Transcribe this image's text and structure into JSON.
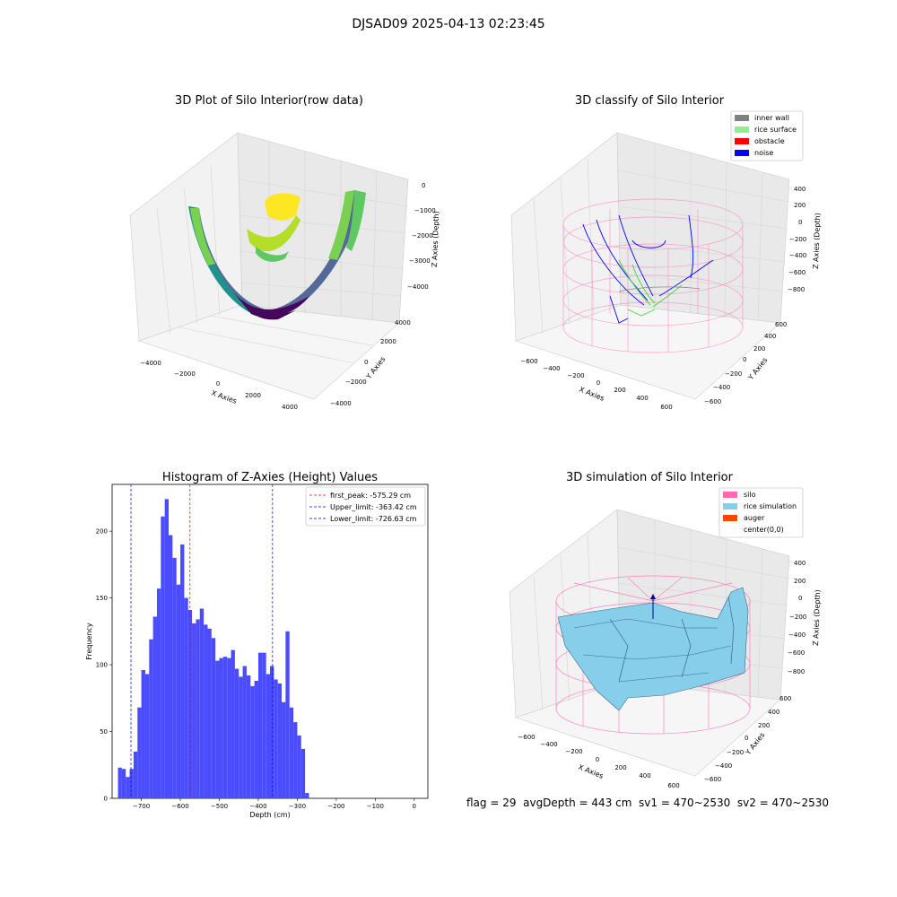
{
  "suptitle": "DJSAD09 2025-04-13 02:23:45",
  "panels": {
    "raw": {
      "title": "3D Plot of Silo Interior(row data)",
      "xlabel": "X Axies",
      "ylabel": "Y Axies",
      "zlabel": "Z Axies (Depth)",
      "xticks": [
        "−4000",
        "−2000",
        "0",
        "2000",
        "4000"
      ],
      "yticks": [
        "−4000",
        "−2000",
        "0",
        "2000",
        "4000"
      ],
      "zticks": [
        "0",
        "−1000",
        "−2000",
        "−3000",
        "−4000"
      ]
    },
    "classify": {
      "title": "3D classify of Silo Interior",
      "xlabel": "X Axies",
      "ylabel": "Y Axies",
      "zlabel": "Z Axies (Depth)",
      "xticks": [
        "−600",
        "−400",
        "−200",
        "0",
        "200",
        "400",
        "600"
      ],
      "yticks": [
        "−600",
        "−400",
        "−200",
        "0",
        "200",
        "400",
        "600"
      ],
      "zticks": [
        "400",
        "200",
        "0",
        "−200",
        "−400",
        "−600",
        "−800"
      ],
      "legend": [
        {
          "label": "inner wall",
          "color": "#808080"
        },
        {
          "label": "rice surface",
          "color": "#90ee90"
        },
        {
          "label": "obstacle",
          "color": "#ff0000"
        },
        {
          "label": "noise",
          "color": "#0000ff"
        }
      ]
    },
    "simulation": {
      "title": "3D simulation of Silo Interior",
      "xlabel": "X Axies",
      "ylabel": "Y Axies",
      "zlabel": "Z Axies (Depth)",
      "xticks": [
        "−600",
        "−400",
        "−200",
        "0",
        "200",
        "400",
        "600"
      ],
      "yticks": [
        "−600",
        "−400",
        "−200",
        "0",
        "200",
        "400",
        "600"
      ],
      "zticks": [
        "400",
        "200",
        "0",
        "−200",
        "−400",
        "−600",
        "−800"
      ],
      "legend": [
        {
          "label": "silo",
          "color": "#ff69b4"
        },
        {
          "label": "rice simulation",
          "color": "#87ceeb"
        },
        {
          "label": "auger",
          "color": "#ff4500"
        },
        {
          "label": "center(0,0)",
          "color": ""
        }
      ]
    }
  },
  "footer": "flag = 29  avgDepth = 443 cm  sv1 = 470~2530  sv2 = 470~2530",
  "chart_data": [
    {
      "type": "bar",
      "title": "Histogram of Z-Axies (Height) Values",
      "xlabel": "Depth (cm)",
      "ylabel": "Frequency",
      "bin_start": -760,
      "bin_width": 10,
      "values": [
        23,
        22,
        16,
        22,
        35,
        68,
        96,
        93,
        119,
        136,
        157,
        211,
        224,
        197,
        180,
        160,
        190,
        150,
        141,
        131,
        134,
        142,
        130,
        127,
        120,
        103,
        105,
        106,
        105,
        111,
        97,
        91,
        99,
        92,
        84,
        88,
        109,
        109,
        93,
        99,
        89,
        86,
        72,
        125,
        68,
        57,
        47,
        37,
        4
      ],
      "xlim": [
        -775,
        35
      ],
      "ylim": [
        0,
        235
      ],
      "xticks": [
        -700,
        -600,
        -500,
        -400,
        -300,
        -200,
        -100,
        0
      ],
      "xtick_labels": [
        "−700",
        "−600",
        "−500",
        "−400",
        "−300",
        "−200",
        "−100",
        "0"
      ],
      "yticks": [
        0,
        50,
        100,
        150,
        200
      ],
      "ytick_labels": [
        "0",
        "50",
        "100",
        "150",
        "200"
      ],
      "bar_color": "#4c4cff",
      "vlines": [
        {
          "x": -575.29,
          "label": "first_peak: -575.29 cm",
          "color": "#ff0000"
        },
        {
          "x": -363.42,
          "label": "Upper_limit: -363.42 cm",
          "color": "#0000ff"
        },
        {
          "x": -726.63,
          "label": "Lower_limit: -726.63 cm",
          "color": "#0000ff"
        }
      ],
      "legend_position": "upper right"
    }
  ]
}
